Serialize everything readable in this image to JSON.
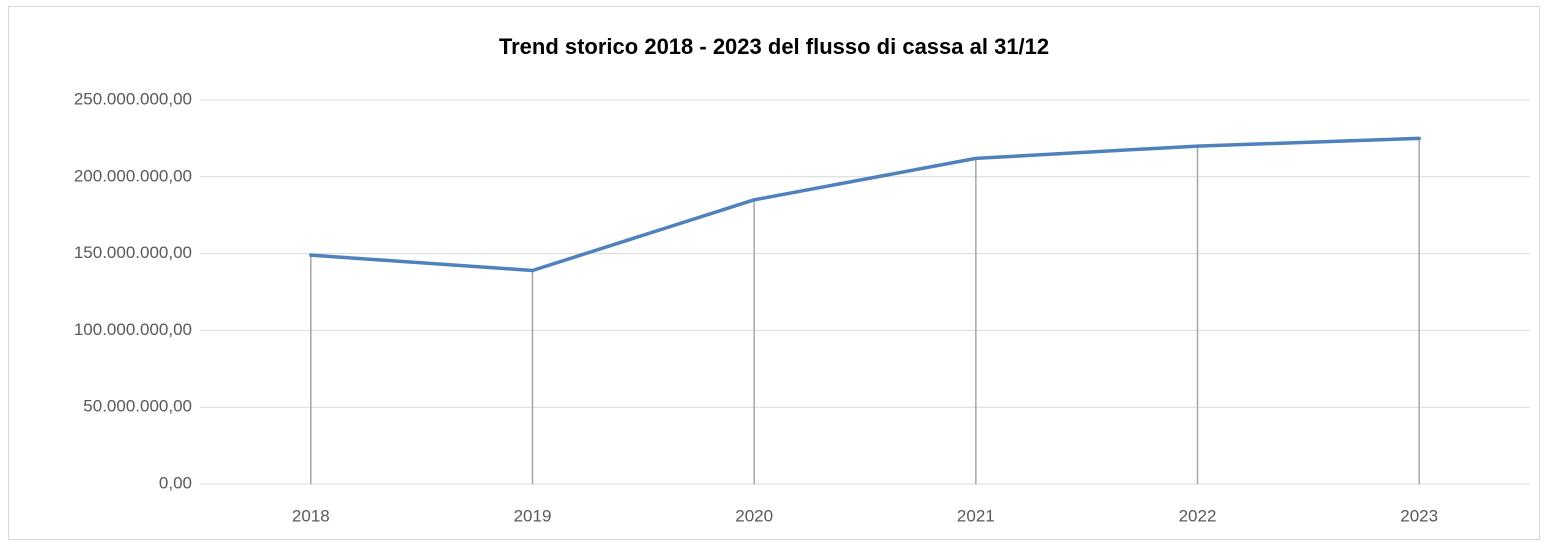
{
  "chart_data": {
    "type": "line",
    "title": "Trend storico 2018 - 2023 del flusso di cassa al 31/12",
    "categories": [
      "2018",
      "2019",
      "2020",
      "2021",
      "2022",
      "2023"
    ],
    "series": [
      {
        "name": "Flusso di cassa",
        "color": "#4f81bd",
        "values": [
          149000000,
          139000000,
          185000000,
          212000000,
          220000000,
          225000000
        ]
      }
    ],
    "ylim": [
      0,
      250000000
    ],
    "yticks": [
      {
        "value": 0,
        "label": "0,00"
      },
      {
        "value": 50000000,
        "label": "50.000.000,00"
      },
      {
        "value": 100000000,
        "label": "100.000.000,00"
      },
      {
        "value": 150000000,
        "label": "150.000.000,00"
      },
      {
        "value": 200000000,
        "label": "200.000.000,00"
      },
      {
        "value": 250000000,
        "label": "250.000.000,00"
      }
    ],
    "grid": true,
    "drop_lines": true
  }
}
